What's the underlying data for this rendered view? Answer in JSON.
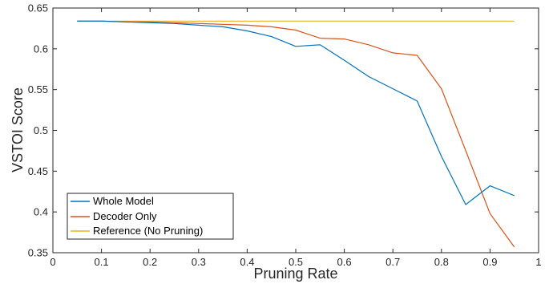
{
  "chart_data": {
    "type": "line",
    "title": "",
    "xlabel": "Pruning Rate",
    "ylabel": "VSTOI Score",
    "xlim": [
      0,
      1
    ],
    "ylim": [
      0.35,
      0.65
    ],
    "xticks": [
      "0",
      "0.1",
      "0.2",
      "0.3",
      "0.4",
      "0.5",
      "0.6",
      "0.7",
      "0.8",
      "0.9",
      "1"
    ],
    "yticks": [
      "0.35",
      "0.4",
      "0.45",
      "0.5",
      "0.55",
      "0.6",
      "0.65"
    ],
    "grid": false,
    "legend_position": "bottom-left",
    "x": [
      0.05,
      0.1,
      0.15,
      0.2,
      0.25,
      0.3,
      0.35,
      0.4,
      0.45,
      0.5,
      0.55,
      0.6,
      0.65,
      0.7,
      0.75,
      0.8,
      0.85,
      0.9,
      0.95
    ],
    "series": [
      {
        "name": "Whole Model",
        "color": "#0072BD",
        "values": [
          0.634,
          0.634,
          0.633,
          0.632,
          0.631,
          0.629,
          0.627,
          0.622,
          0.615,
          0.603,
          0.605,
          0.586,
          0.566,
          0.551,
          0.536,
          0.468,
          0.409,
          0.432,
          0.42
        ]
      },
      {
        "name": "Decoder Only",
        "color": "#D95319",
        "values": [
          0.634,
          0.634,
          0.633,
          0.633,
          0.632,
          0.631,
          0.63,
          0.629,
          0.627,
          0.623,
          0.613,
          0.612,
          0.605,
          0.595,
          0.592,
          0.551,
          0.475,
          0.398,
          0.357
        ]
      },
      {
        "name": "Reference (No Pruning)",
        "color": "#EDB120",
        "values": [
          0.634,
          0.634,
          0.634,
          0.634,
          0.634,
          0.634,
          0.634,
          0.634,
          0.634,
          0.634,
          0.634,
          0.634,
          0.634,
          0.634,
          0.634,
          0.634,
          0.634,
          0.634,
          0.634
        ]
      }
    ]
  }
}
